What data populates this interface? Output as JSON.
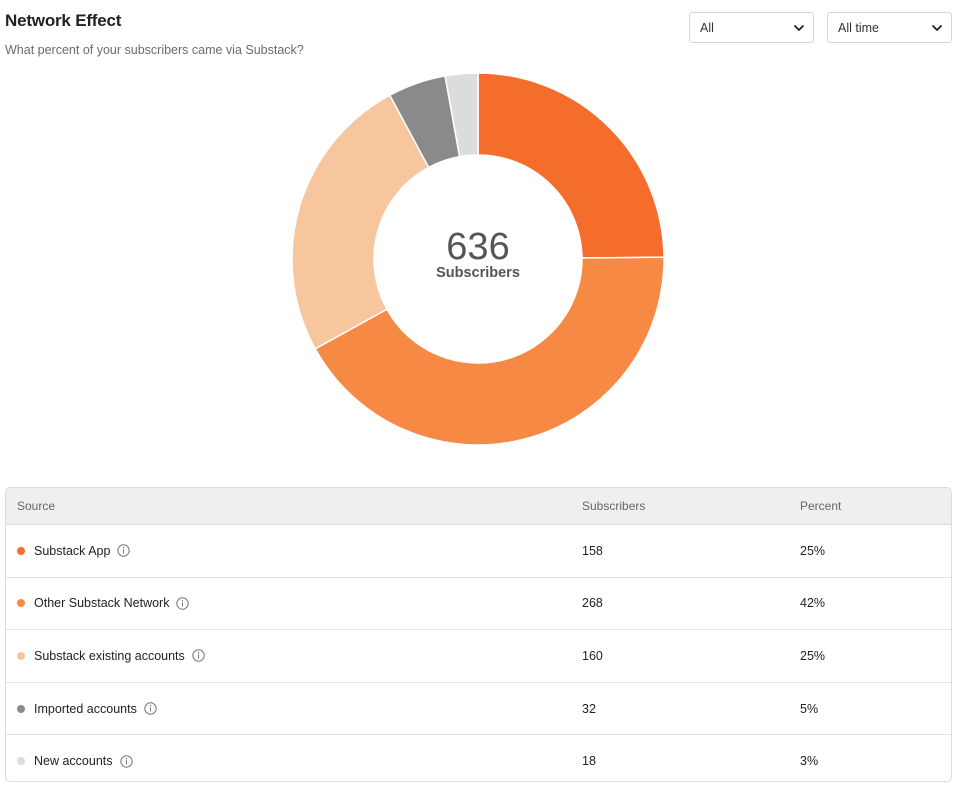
{
  "header": {
    "title": "Network Effect",
    "subtitle": "What percent of your subscribers came via Substack?"
  },
  "filters": {
    "source_selected": "All",
    "period_selected": "All time"
  },
  "center": {
    "total": "636",
    "label": "Subscribers"
  },
  "chart_data": {
    "type": "pie",
    "categories": [
      "Substack App",
      "Other Substack Network",
      "Substack existing accounts",
      "Imported accounts",
      "New accounts"
    ],
    "values": [
      158,
      268,
      160,
      32,
      18
    ],
    "colors": [
      "#f46d2b",
      "#f68a45",
      "#f8c69d",
      "#8a8a8a",
      "#dcdcdc"
    ],
    "hole": "donut"
  },
  "table": {
    "headers": {
      "source": "Source",
      "subscribers": "Subscribers",
      "percent": "Percent"
    },
    "rows": [
      {
        "source": "Substack App",
        "subscribers": "158",
        "percent": "25%",
        "color": "#f46d2b"
      },
      {
        "source": "Other Substack Network",
        "subscribers": "268",
        "percent": "42%",
        "color": "#f68a45"
      },
      {
        "source": "Substack existing accounts",
        "subscribers": "160",
        "percent": "25%",
        "color": "#f8c69d"
      },
      {
        "source": "Imported accounts",
        "subscribers": "32",
        "percent": "5%",
        "color": "#8a8a8a"
      },
      {
        "source": "New accounts",
        "subscribers": "18",
        "percent": "3%",
        "color": "#dcdcdc"
      }
    ]
  }
}
